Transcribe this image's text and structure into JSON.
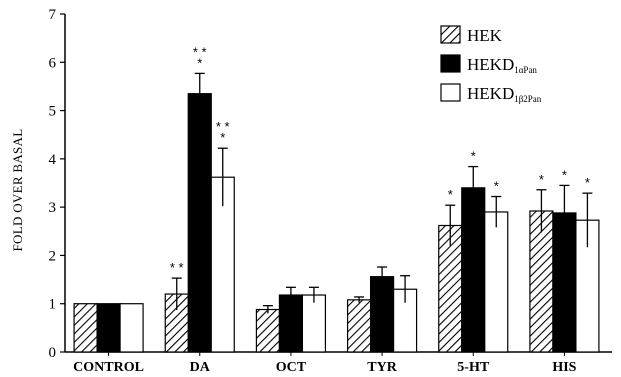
{
  "chart_data": {
    "type": "bar",
    "ylabel": "FOLD OVER BASAL",
    "ylim": [
      0,
      7
    ],
    "yticks": [
      "0",
      "1",
      "2",
      "3",
      "4",
      "5",
      "6",
      "7"
    ],
    "categories": [
      "CONTROL",
      "DA",
      "OCT",
      "TYR",
      "5-HT",
      "HIS"
    ],
    "series": [
      {
        "name": "HEK",
        "name_sub": "",
        "pattern": "hatched",
        "color": "#000000",
        "values": [
          1.0,
          1.2,
          0.88,
          1.08,
          2.62,
          2.92
        ],
        "errors": [
          0.0,
          0.33,
          0.08,
          0.06,
          0.42,
          0.44
        ],
        "significance": [
          "",
          "* *",
          "",
          "",
          "*",
          "*"
        ]
      },
      {
        "name": "HEKD",
        "name_sub": "1αPan",
        "pattern": "solid",
        "color": "#000000",
        "values": [
          1.0,
          5.35,
          1.18,
          1.56,
          3.4,
          2.88
        ],
        "errors": [
          0.0,
          0.42,
          0.16,
          0.2,
          0.44,
          0.57
        ],
        "significance": [
          "",
          "* *\n*",
          "",
          "",
          "*",
          "*"
        ]
      },
      {
        "name": "HEKD",
        "name_sub": "1β2Pan",
        "pattern": "open",
        "color": "#ffffff",
        "values": [
          1.0,
          3.62,
          1.18,
          1.3,
          2.9,
          2.73
        ],
        "errors": [
          0.0,
          0.6,
          0.16,
          0.28,
          0.32,
          0.56
        ],
        "significance": [
          "",
          "* *\n*",
          "",
          "",
          "*",
          "*"
        ]
      }
    ],
    "legend_position": "top-right",
    "grid": false
  }
}
